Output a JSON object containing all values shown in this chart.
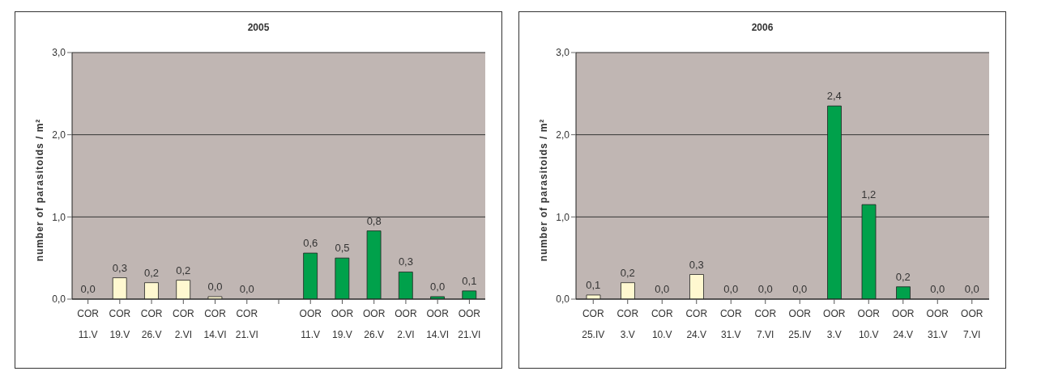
{
  "chart_data": [
    {
      "type": "bar",
      "title": "2005",
      "ylabel": "number of parasitoids / m²",
      "categories": [
        "COR 11.V",
        "COR 19.V",
        "COR 26.V",
        "COR 2.VI",
        "COR 14.VI",
        "COR 21.VI",
        null,
        "OOR 11.V",
        "OOR 19.V",
        "OOR 26.V",
        "OOR 2.VI",
        "OOR 14.VI",
        "OOR 21.VI"
      ],
      "values": [
        0,
        0.26,
        0.2,
        0.23,
        0.03,
        0,
        null,
        0.56,
        0.5,
        0.83,
        0.33,
        0.03,
        0.1
      ],
      "value_labels": [
        "0,0",
        "0,3",
        "0,2",
        "0,2",
        "0,0",
        "0,0",
        null,
        "0,6",
        "0,5",
        "0,8",
        "0,3",
        "0,0",
        "0,1"
      ],
      "colors": [
        "#fff8d0",
        "#fff8d0",
        "#fff8d0",
        "#fff8d0",
        "#fff8d0",
        "#fff8d0",
        "#fff8d0",
        "#00a14b",
        "#00a14b",
        "#00a14b",
        "#00a14b",
        "#00a14b",
        "#00a14b"
      ],
      "ylim": [
        0,
        3
      ],
      "yticks": [
        {
          "value": 0,
          "label": "0,0"
        },
        {
          "value": 1,
          "label": "1,0"
        },
        {
          "value": 2,
          "label": "2,0"
        },
        {
          "value": 3,
          "label": "3,0"
        }
      ],
      "grid": "y",
      "legend": false
    },
    {
      "type": "bar",
      "title": "2006",
      "ylabel": "number of parasitoids / m²",
      "categories": [
        "COR 25.IV",
        "COR 3.V",
        "COR 10.V",
        "COR 24.V",
        "COR 31.V",
        "COR 7.VI",
        "OOR 25.IV",
        "OOR 3.V",
        "OOR 10.V",
        "OOR 24.V",
        "OOR 31.V",
        "OOR 7.VI"
      ],
      "values": [
        0.05,
        0.2,
        0,
        0.3,
        0,
        0,
        0,
        2.35,
        1.15,
        0.15,
        0,
        0
      ],
      "value_labels": [
        "0,1",
        "0,2",
        "0,0",
        "0,3",
        "0,0",
        "0,0",
        "0,0",
        "2,4",
        "1,2",
        "0,2",
        "0,0",
        "0,0"
      ],
      "colors": [
        "#fff8d0",
        "#fff8d0",
        "#fff8d0",
        "#fff8d0",
        "#fff8d0",
        "#fff8d0",
        "#00a14b",
        "#00a14b",
        "#00a14b",
        "#00a14b",
        "#00a14b",
        "#00a14b"
      ],
      "ylim": [
        0,
        3
      ],
      "yticks": [
        {
          "value": 0,
          "label": "0,0"
        },
        {
          "value": 1,
          "label": "1,0"
        },
        {
          "value": 2,
          "label": "2,0"
        },
        {
          "value": 3,
          "label": "3,0"
        }
      ],
      "grid": "y",
      "legend": false
    }
  ]
}
